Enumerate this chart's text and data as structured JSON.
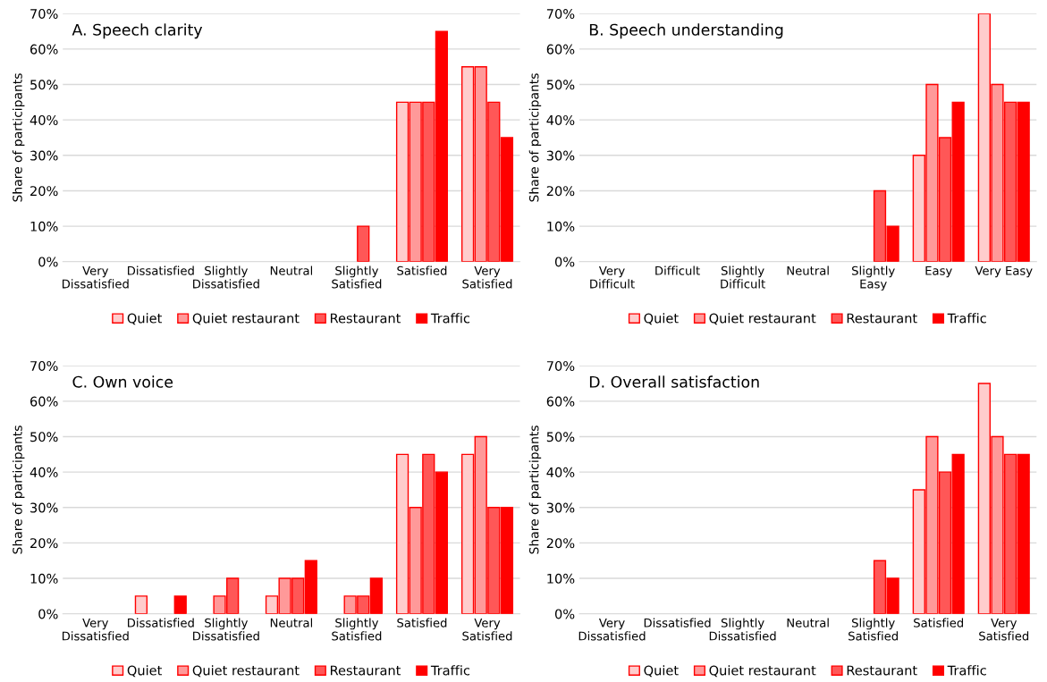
{
  "chart_data": [
    {
      "type": "bar",
      "title": "A. Speech clarity",
      "ylabel": "Share of participants",
      "categories": [
        "Very\nDissatisfied",
        "Dissatisfied",
        "Slightly\nDissatisfied",
        "Neutral",
        "Slightly\nSatisfied",
        "Satisfied",
        "Very\nSatisfied"
      ],
      "series": [
        {
          "name": "Quiet",
          "color": "#ffcccc",
          "values": [
            null,
            null,
            null,
            null,
            null,
            45,
            55
          ]
        },
        {
          "name": "Quiet restaurant",
          "color": "#ff9999",
          "values": [
            null,
            null,
            null,
            null,
            null,
            45,
            55
          ]
        },
        {
          "name": "Restaurant",
          "color": "#ff5757",
          "values": [
            null,
            null,
            null,
            null,
            10,
            45,
            45
          ]
        },
        {
          "name": "Traffic",
          "color": "#ff0000",
          "values": [
            null,
            null,
            null,
            null,
            null,
            65,
            35
          ]
        }
      ],
      "ylim": [
        0,
        70
      ],
      "yticks": [
        {
          "value": 0,
          "label": "0%"
        },
        {
          "value": 10,
          "label": "10%"
        },
        {
          "value": 20,
          "label": "20%"
        },
        {
          "value": 30,
          "label": "30%"
        },
        {
          "value": 40,
          "label": "40%"
        },
        {
          "value": 50,
          "label": "50%"
        },
        {
          "value": 60,
          "label": "60%"
        },
        {
          "value": 70,
          "label": "70%"
        }
      ],
      "grid": "y",
      "legend": "bottom"
    },
    {
      "type": "bar",
      "title": "B. Speech understanding",
      "ylabel": "Share of participants",
      "categories": [
        "Very\nDifficult",
        "Difficult",
        "Slightly\nDifficult",
        "Neutral",
        "Slightly\nEasy",
        "Easy",
        "Very Easy"
      ],
      "series": [
        {
          "name": "Quiet",
          "color": "#ffcccc",
          "values": [
            null,
            null,
            null,
            null,
            null,
            30,
            70
          ]
        },
        {
          "name": "Quiet restaurant",
          "color": "#ff9999",
          "values": [
            null,
            null,
            null,
            null,
            null,
            50,
            50
          ]
        },
        {
          "name": "Restaurant",
          "color": "#ff5757",
          "values": [
            null,
            null,
            null,
            null,
            20,
            35,
            45
          ]
        },
        {
          "name": "Traffic",
          "color": "#ff0000",
          "values": [
            null,
            null,
            null,
            null,
            10,
            45,
            45
          ]
        }
      ],
      "ylim": [
        0,
        70
      ],
      "yticks": [
        {
          "value": 0,
          "label": "0%"
        },
        {
          "value": 10,
          "label": "10%"
        },
        {
          "value": 20,
          "label": "20%"
        },
        {
          "value": 30,
          "label": "30%"
        },
        {
          "value": 40,
          "label": "40%"
        },
        {
          "value": 50,
          "label": "50%"
        },
        {
          "value": 60,
          "label": "60%"
        },
        {
          "value": 70,
          "label": "70%"
        }
      ],
      "grid": "y",
      "legend": "bottom"
    },
    {
      "type": "bar",
      "title": "C. Own voice",
      "ylabel": "Share of participants",
      "categories": [
        "Very\nDissatisfied",
        "Dissatisfied",
        "Slightly\nDissatisfied",
        "Neutral",
        "Slightly\nSatisfied",
        "Satisfied",
        "Very\nSatisfied"
      ],
      "series": [
        {
          "name": "Quiet",
          "color": "#ffcccc",
          "values": [
            null,
            5,
            null,
            5,
            null,
            45,
            45
          ]
        },
        {
          "name": "Quiet restaurant",
          "color": "#ff9999",
          "values": [
            null,
            null,
            5,
            10,
            5,
            30,
            50
          ]
        },
        {
          "name": "Restaurant",
          "color": "#ff5757",
          "values": [
            null,
            null,
            10,
            10,
            5,
            45,
            30
          ]
        },
        {
          "name": "Traffic",
          "color": "#ff0000",
          "values": [
            null,
            5,
            null,
            15,
            10,
            40,
            30
          ]
        }
      ],
      "ylim": [
        0,
        70
      ],
      "yticks": [
        {
          "value": 0,
          "label": "0%"
        },
        {
          "value": 10,
          "label": "10%"
        },
        {
          "value": 20,
          "label": "20%"
        },
        {
          "value": 30,
          "label": "30%"
        },
        {
          "value": 40,
          "label": "40%"
        },
        {
          "value": 50,
          "label": "50%"
        },
        {
          "value": 60,
          "label": "60%"
        },
        {
          "value": 70,
          "label": "70%"
        }
      ],
      "grid": "y",
      "legend": "bottom"
    },
    {
      "type": "bar",
      "title": "D. Overall satisfaction",
      "ylabel": "Share of participants",
      "categories": [
        "Very\nDissatisfied",
        "Dissatisfied",
        "Slightly\nDissatisfied",
        "Neutral",
        "Slightly\nSatisfied",
        "Satisfied",
        "Very\nSatisfied"
      ],
      "series": [
        {
          "name": "Quiet",
          "color": "#ffcccc",
          "values": [
            null,
            null,
            null,
            null,
            null,
            35,
            65
          ]
        },
        {
          "name": "Quiet restaurant",
          "color": "#ff9999",
          "values": [
            null,
            null,
            null,
            null,
            null,
            50,
            50
          ]
        },
        {
          "name": "Restaurant",
          "color": "#ff5757",
          "values": [
            null,
            null,
            null,
            null,
            15,
            40,
            45
          ]
        },
        {
          "name": "Traffic",
          "color": "#ff0000",
          "values": [
            null,
            null,
            null,
            null,
            10,
            45,
            45
          ]
        }
      ],
      "ylim": [
        0,
        70
      ],
      "yticks": [
        {
          "value": 0,
          "label": "0%"
        },
        {
          "value": 10,
          "label": "10%"
        },
        {
          "value": 20,
          "label": "20%"
        },
        {
          "value": 30,
          "label": "30%"
        },
        {
          "value": 40,
          "label": "40%"
        },
        {
          "value": 50,
          "label": "50%"
        },
        {
          "value": 60,
          "label": "60%"
        },
        {
          "value": 70,
          "label": "70%"
        }
      ],
      "grid": "y",
      "legend": "bottom"
    }
  ]
}
